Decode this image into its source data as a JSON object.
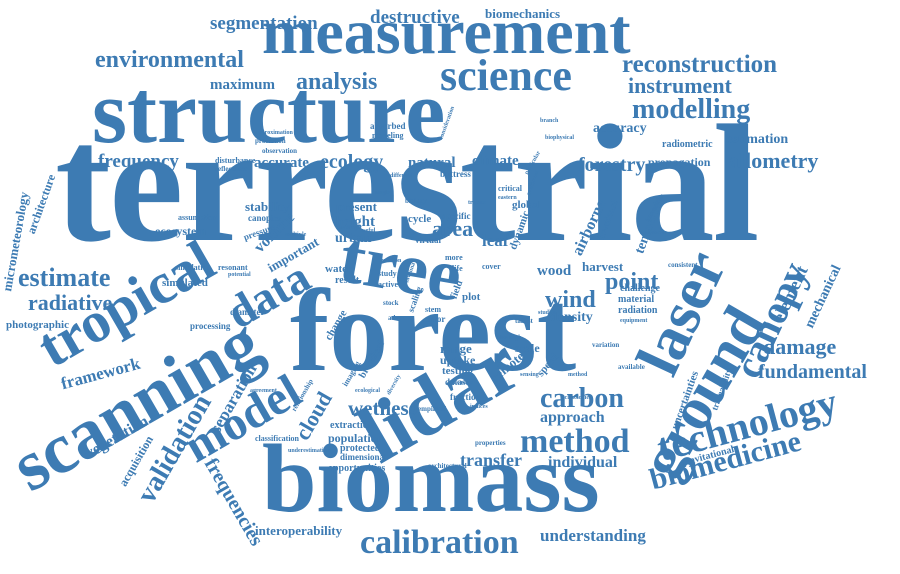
{
  "color": "#3d7bb3",
  "words": [
    {
      "text": "terrestrial"
    },
    {
      "text": "forest"
    },
    {
      "text": "biomass"
    },
    {
      "text": "structure"
    },
    {
      "text": "measurement"
    },
    {
      "text": "lidar"
    },
    {
      "text": "scanning"
    },
    {
      "text": "tree"
    },
    {
      "text": "tropical"
    },
    {
      "text": "laser"
    },
    {
      "text": "ground"
    },
    {
      "text": "science"
    },
    {
      "text": "data"
    },
    {
      "text": "model"
    },
    {
      "text": "technology"
    },
    {
      "text": "calibration"
    },
    {
      "text": "biomedicine"
    },
    {
      "text": "method"
    },
    {
      "text": "canopy"
    },
    {
      "text": "carbon"
    },
    {
      "text": "validation"
    },
    {
      "text": "modelling"
    },
    {
      "text": "reconstruction"
    },
    {
      "text": "environmental"
    },
    {
      "text": "analysis"
    },
    {
      "text": "instrument"
    },
    {
      "text": "segmentation"
    },
    {
      "text": "destructive"
    },
    {
      "text": "biomechanics"
    },
    {
      "text": "estimate"
    },
    {
      "text": "radiative"
    },
    {
      "text": "frequency"
    },
    {
      "text": "ecology"
    },
    {
      "text": "allometry"
    },
    {
      "text": "forestry"
    },
    {
      "text": "point"
    },
    {
      "text": "wind"
    },
    {
      "text": "damage"
    },
    {
      "text": "fundamental"
    },
    {
      "text": "framework"
    },
    {
      "text": "wetness"
    },
    {
      "text": "transfer"
    },
    {
      "text": "individual"
    },
    {
      "text": "understanding"
    },
    {
      "text": "interoperability"
    },
    {
      "text": "frequencies"
    },
    {
      "text": "vegetation"
    },
    {
      "text": "separation"
    },
    {
      "text": "cloud"
    },
    {
      "text": "approach"
    },
    {
      "text": "element"
    },
    {
      "text": "mechanical"
    },
    {
      "text": "maximum"
    },
    {
      "text": "accuracy"
    },
    {
      "text": "estimation"
    },
    {
      "text": "accurate"
    },
    {
      "text": "natural"
    },
    {
      "text": "climate"
    },
    {
      "text": "propagation"
    },
    {
      "text": "radiometric"
    },
    {
      "text": "stability"
    },
    {
      "text": "ecosystem"
    },
    {
      "text": "volume"
    },
    {
      "text": "important"
    },
    {
      "text": "micrometeorology"
    },
    {
      "text": "architecture"
    },
    {
      "text": "photographic"
    },
    {
      "text": "simulated"
    },
    {
      "text": "height"
    },
    {
      "text": "present"
    },
    {
      "text": "urban"
    },
    {
      "text": "area"
    },
    {
      "text": "leaf"
    },
    {
      "text": "airborne"
    },
    {
      "text": "temperate"
    },
    {
      "text": "wood"
    },
    {
      "text": "harvest"
    },
    {
      "text": "density"
    },
    {
      "text": "range"
    },
    {
      "text": "uptake"
    },
    {
      "text": "testing"
    },
    {
      "text": "remote"
    },
    {
      "text": "scale"
    },
    {
      "text": "population"
    },
    {
      "text": "extraction"
    },
    {
      "text": "protected"
    },
    {
      "text": "opportunities"
    },
    {
      "text": "dimensional"
    },
    {
      "text": "acquisition"
    },
    {
      "text": "classification"
    },
    {
      "text": "processing"
    },
    {
      "text": "diameter"
    },
    {
      "text": "simulation"
    },
    {
      "text": "resonant"
    },
    {
      "text": "fraction"
    },
    {
      "text": "dataset"
    },
    {
      "text": "gravitational"
    },
    {
      "text": "traceability"
    },
    {
      "text": "uncertainties"
    },
    {
      "text": "material"
    },
    {
      "text": "radiation"
    },
    {
      "text": "challenge"
    },
    {
      "text": "variation"
    },
    {
      "text": "available"
    },
    {
      "text": "consistent"
    },
    {
      "text": "global"
    },
    {
      "text": "specific"
    },
    {
      "text": "virtual"
    },
    {
      "text": "cycle"
    },
    {
      "text": "dynamic"
    },
    {
      "text": "water"
    },
    {
      "text": "result"
    },
    {
      "text": "buttress"
    },
    {
      "text": "biology"
    },
    {
      "text": "absorbed"
    },
    {
      "text": "modeling"
    },
    {
      "text": "disturbance"
    },
    {
      "text": "reflectance"
    },
    {
      "text": "observation"
    },
    {
      "text": "protection"
    },
    {
      "text": "approximation"
    },
    {
      "text": "canopies"
    },
    {
      "text": "pressure"
    },
    {
      "text": "assumption"
    },
    {
      "text": "broadleaf"
    },
    {
      "text": "change"
    },
    {
      "text": "imaging"
    },
    {
      "text": "plot"
    },
    {
      "text": "error"
    },
    {
      "text": "stem"
    },
    {
      "text": "scaling"
    },
    {
      "text": "field"
    },
    {
      "text": "speed"
    },
    {
      "text": "critical"
    },
    {
      "text": "fractional"
    },
    {
      "text": "architectural"
    },
    {
      "text": "properties"
    },
    {
      "text": "empirical"
    },
    {
      "text": "relationship"
    },
    {
      "text": "agreement"
    },
    {
      "text": "ecological"
    },
    {
      "text": "diversity"
    },
    {
      "text": "borough"
    },
    {
      "text": "tallest"
    },
    {
      "text": "equipment"
    },
    {
      "text": "technologies"
    },
    {
      "text": "biophysical"
    },
    {
      "text": "particular"
    },
    {
      "text": "eastern"
    },
    {
      "text": "advance"
    },
    {
      "text": "stock"
    },
    {
      "text": "active"
    },
    {
      "text": "study"
    },
    {
      "text": "more"
    },
    {
      "text": "life"
    },
    {
      "text": "cover"
    },
    {
      "text": "savanna"
    },
    {
      "text": "sensing"
    },
    {
      "text": "underestimation"
    },
    {
      "text": "coefficient"
    },
    {
      "text": "consideration"
    },
    {
      "text": "systematic"
    },
    {
      "text": "information"
    },
    {
      "text": "function"
    },
    {
      "text": "potential"
    },
    {
      "text": "multiple"
    },
    {
      "text": "average"
    },
    {
      "text": "useful"
    },
    {
      "text": "single"
    },
    {
      "text": "different"
    },
    {
      "text": "measure"
    },
    {
      "text": "indices"
    },
    {
      "text": "studies"
    },
    {
      "text": "method"
    },
    {
      "text": "tropics"
    },
    {
      "text": "branch"
    }
  ]
}
